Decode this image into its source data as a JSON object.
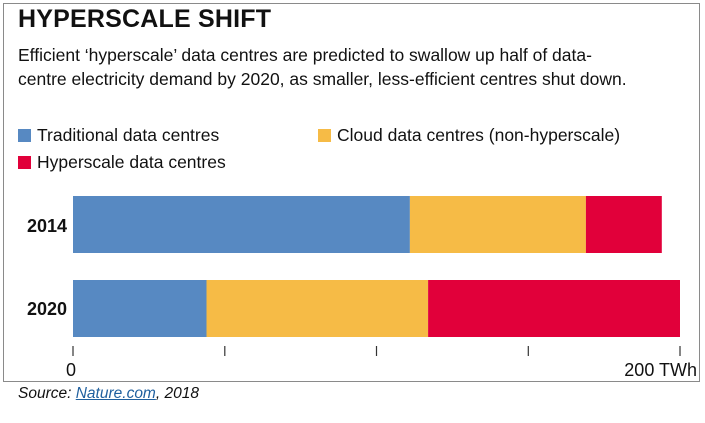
{
  "chart_data": {
    "type": "bar",
    "orientation": "horizontal",
    "stacked": true,
    "title": "HYPERSCALE SHIFT",
    "subtitle": "Efficient ‘hyperscale’ data centres are predicted to swallow up half of data-centre electricity demand by 2020, as smaller, less-efficient centres shut down.",
    "categories": [
      "2014",
      "2020"
    ],
    "series": [
      {
        "name": "Traditional data centres",
        "color": "#5789c2",
        "values": [
          111,
          44
        ]
      },
      {
        "name": "Cloud data centres (non-hyperscale)",
        "color": "#f6bb46",
        "values": [
          58,
          73
        ]
      },
      {
        "name": "Hyperscale data centres",
        "color": "#e1003a",
        "values": [
          25,
          83
        ]
      }
    ],
    "xlim": [
      0,
      200
    ],
    "x_ticks": [
      0,
      50,
      100,
      150,
      200
    ],
    "x_tick_labels": [
      "0",
      "",
      "",
      "",
      "200 TWh"
    ],
    "legend_placement": "top-left",
    "grid": false
  },
  "source": {
    "prefix": "Source: ",
    "link_text": "Nature.com",
    "suffix": ", 2018"
  }
}
